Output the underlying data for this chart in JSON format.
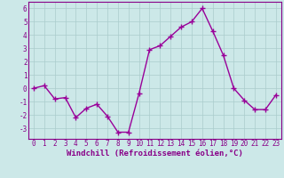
{
  "x": [
    0,
    1,
    2,
    3,
    4,
    5,
    6,
    7,
    8,
    9,
    10,
    11,
    12,
    13,
    14,
    15,
    16,
    17,
    18,
    19,
    20,
    21,
    22,
    23
  ],
  "y": [
    0.0,
    0.2,
    -0.8,
    -0.7,
    -2.2,
    -1.5,
    -1.2,
    -2.1,
    -3.3,
    -3.3,
    -0.4,
    2.9,
    3.2,
    3.9,
    4.6,
    5.0,
    6.0,
    4.3,
    2.5,
    0.0,
    -0.9,
    -1.6,
    -1.6,
    -0.5
  ],
  "line_color": "#990099",
  "marker": "+",
  "marker_size": 4,
  "linewidth": 1.0,
  "xlabel": "Windchill (Refroidissement éolien,°C)",
  "xlim": [
    -0.5,
    23.5
  ],
  "ylim": [
    -3.8,
    6.5
  ],
  "yticks": [
    -3,
    -2,
    -1,
    0,
    1,
    2,
    3,
    4,
    5,
    6
  ],
  "xticks": [
    0,
    1,
    2,
    3,
    4,
    5,
    6,
    7,
    8,
    9,
    10,
    11,
    12,
    13,
    14,
    15,
    16,
    17,
    18,
    19,
    20,
    21,
    22,
    23
  ],
  "bg_color": "#cce8e8",
  "grid_color": "#aacccc",
  "xlabel_fontsize": 6.5,
  "tick_fontsize": 5.5,
  "label_color": "#880088",
  "spine_color": "#880088"
}
